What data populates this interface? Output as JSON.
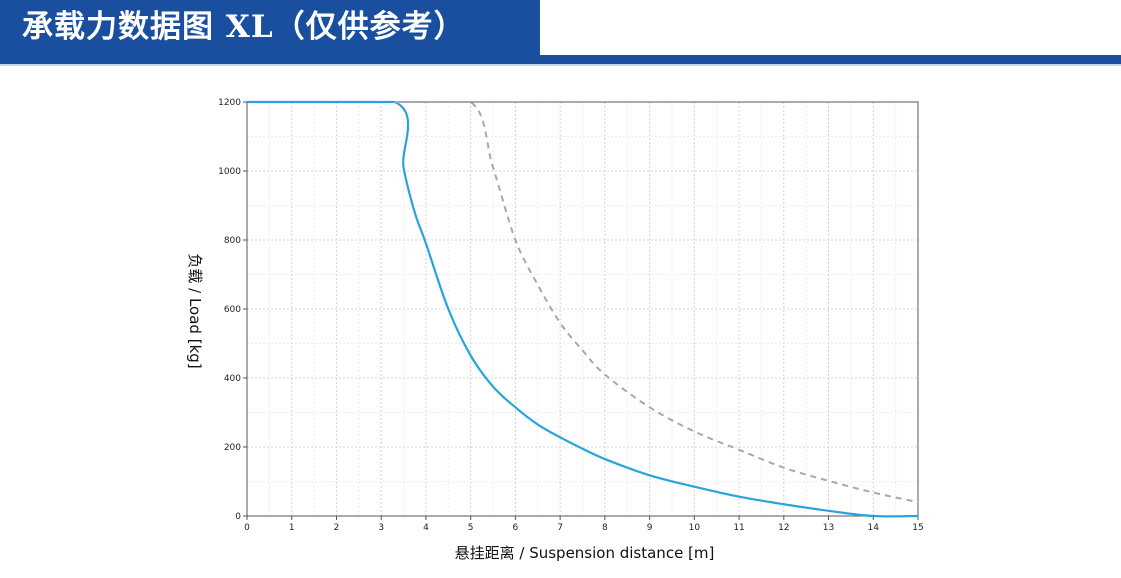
{
  "header": {
    "title": "承载力数据图 XL（仅供参考）",
    "band_color": "#1a4fa0"
  },
  "chart_data": {
    "type": "line",
    "xlabel": "悬挂距离 / Suspension distance [m]",
    "ylabel": "负载 / Load [kg]",
    "xlim": [
      0,
      15
    ],
    "ylim": [
      0,
      1200
    ],
    "x_ticks": [
      0,
      1,
      2,
      3,
      4,
      5,
      6,
      7,
      8,
      9,
      10,
      11,
      12,
      13,
      14,
      15
    ],
    "y_ticks": [
      0,
      200,
      400,
      600,
      800,
      1000,
      1200
    ],
    "grid": true,
    "legend": "none",
    "series": [
      {
        "style": "solid",
        "color": "#2aa3dc",
        "x": [
          0,
          3.3,
          3.5,
          3.75,
          4,
          4.5,
          5,
          5.5,
          6,
          6.5,
          7,
          7.5,
          8,
          9,
          10,
          11,
          12,
          13,
          14,
          15
        ],
        "y": [
          1200,
          1200,
          1010,
          880,
          790,
          600,
          465,
          375,
          315,
          265,
          228,
          195,
          165,
          118,
          85,
          56,
          34,
          15,
          0,
          0
        ]
      },
      {
        "style": "dashed",
        "color": "#a8a8a8",
        "x": [
          3.3,
          5,
          5.5,
          6,
          6.5,
          7,
          7.5,
          8,
          9,
          10,
          11,
          12,
          13,
          14,
          15
        ],
        "y": [
          1200,
          1200,
          1010,
          800,
          670,
          560,
          480,
          410,
          315,
          245,
          192,
          140,
          102,
          68,
          40
        ]
      }
    ]
  }
}
